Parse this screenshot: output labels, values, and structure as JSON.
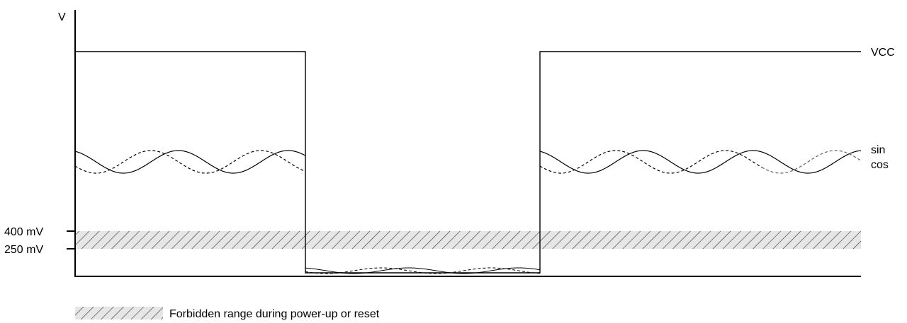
{
  "diagram": {
    "y_axis_label": "V",
    "tick_labels": [
      "400 mV",
      "250 mV"
    ],
    "signal_labels": {
      "vcc": "VCC",
      "sin": "sin",
      "cos": "cos"
    },
    "legend_text": "Forbidden range during power-up or reset"
  },
  "colors": {
    "line": "#000000",
    "band_fill": "#e6e6e6",
    "hatch": "#333333",
    "cos_late": "#5a5a8c",
    "background": "#ffffff"
  }
}
